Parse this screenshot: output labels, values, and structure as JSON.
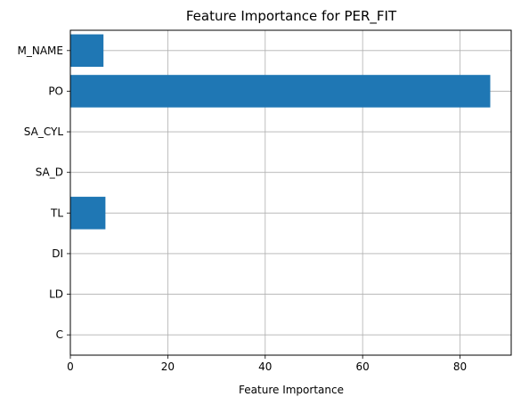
{
  "chart_data": {
    "type": "bar",
    "orientation": "horizontal",
    "title": "Feature Importance for PER_FIT",
    "xlabel": "Feature Importance",
    "ylabel": "",
    "categories": [
      "M_NAME",
      "PO",
      "SA_CYL",
      "SA_D",
      "TL",
      "DI",
      "LD",
      "C"
    ],
    "values": [
      6.8,
      86.2,
      0,
      0,
      7.2,
      0,
      0,
      0
    ],
    "xlim": [
      0,
      90.5
    ],
    "xticks": [
      0,
      20,
      40,
      60,
      80
    ],
    "grid": true,
    "bar_color": "#1f77b4"
  }
}
